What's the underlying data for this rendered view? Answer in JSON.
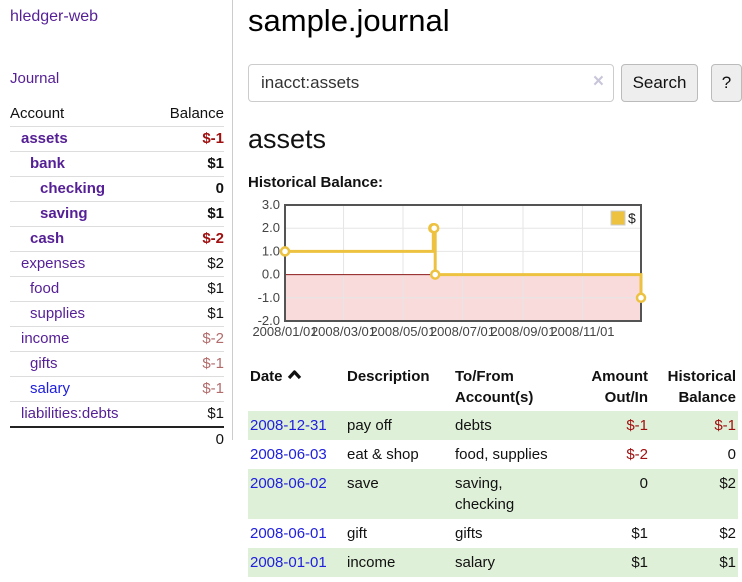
{
  "sidebar": {
    "app_title": "hledger-web",
    "journal_label": "Journal",
    "accounts_table": {
      "headers": {
        "account": "Account",
        "balance": "Balance"
      },
      "rows": [
        {
          "name": "assets",
          "balance": "$-1",
          "level": 1,
          "bold": true,
          "negative": "strong"
        },
        {
          "name": "bank",
          "balance": "$1",
          "level": 2,
          "bold": true
        },
        {
          "name": "checking",
          "balance": "0",
          "level": 3,
          "bold": true
        },
        {
          "name": "saving",
          "balance": "$1",
          "level": 3,
          "bold": true
        },
        {
          "name": "cash",
          "balance": "$-2",
          "level": 2,
          "bold": true,
          "negative": "strong"
        },
        {
          "name": "expenses",
          "balance": "$2",
          "level": 1
        },
        {
          "name": "food",
          "balance": "$1",
          "level": 2
        },
        {
          "name": "supplies",
          "balance": "$1",
          "level": 2
        },
        {
          "name": "income",
          "balance": "$-2",
          "level": 1,
          "negative": "muted"
        },
        {
          "name": "gifts",
          "balance": "$-1",
          "level": 2,
          "negative": "muted"
        },
        {
          "name": "salary",
          "balance": "$-1",
          "level": 2,
          "negative": "muted",
          "link_color": "blue"
        },
        {
          "name": "liabilities:debts",
          "balance": "$1",
          "level": 1
        }
      ],
      "total": "0"
    }
  },
  "main": {
    "title": "sample.journal",
    "search": {
      "value": "inacct:assets",
      "clear_icon": "×",
      "button_label": "Search",
      "help_label": "?"
    },
    "account_heading": "assets",
    "chart_title": "Historical Balance:",
    "register_table": {
      "headers": [
        {
          "lines": [
            "Date"
          ],
          "sort": true
        },
        {
          "lines": [
            "Description"
          ]
        },
        {
          "lines": [
            "To/From",
            "Account(s)"
          ]
        },
        {
          "lines": [
            "Amount",
            "Out/In"
          ],
          "align": "right"
        },
        {
          "lines": [
            "Historical",
            "Balance"
          ],
          "align": "right"
        }
      ],
      "sort_icon": "chevron-up",
      "rows": [
        {
          "date": "2008-12-31",
          "description": "pay off",
          "accounts": [
            "debts"
          ],
          "amount": "$-1",
          "amount_negative": true,
          "balance": "$-1",
          "balance_negative": true,
          "stripe": true
        },
        {
          "date": "2008-06-03",
          "description": "eat & shop",
          "accounts": [
            "food, supplies"
          ],
          "amount": "$-2",
          "amount_negative": true,
          "balance": "0"
        },
        {
          "date": "2008-06-02",
          "description": "save",
          "accounts": [
            "saving,",
            "checking"
          ],
          "amount": "0",
          "balance": "$2",
          "stripe": true
        },
        {
          "date": "2008-06-01",
          "description": "gift",
          "accounts": [
            "gifts"
          ],
          "amount": "$1",
          "balance": "$2"
        },
        {
          "date": "2008-01-01",
          "description": "income",
          "accounts": [
            "salary"
          ],
          "amount": "$1",
          "balance": "$1",
          "stripe": true
        }
      ]
    }
  },
  "chart_data": {
    "type": "line",
    "title": "Historical Balance:",
    "step": true,
    "x_range": [
      "2008-01-01",
      "2008-12-31"
    ],
    "ylim": [
      -2,
      3
    ],
    "y_ticks": [
      3.0,
      2.0,
      1.0,
      0.0,
      -1.0,
      -2.0
    ],
    "x_ticks": [
      "2008/01/01",
      "2008/03/01",
      "2008/05/01",
      "2008/07/01",
      "2008/09/01",
      "2008/11/01"
    ],
    "series": [
      {
        "name": "$",
        "color": "#edc240",
        "points": [
          [
            "2008-01-01",
            1
          ],
          [
            "2008-06-01",
            2
          ],
          [
            "2008-06-02",
            2
          ],
          [
            "2008-06-03",
            0
          ],
          [
            "2008-12-31",
            -1
          ]
        ]
      }
    ],
    "legend_position": "top-right",
    "grid": true,
    "negative_region_color": "#f9dbdb",
    "zero_line_color": "#8b1a1a",
    "border_color": "#545454",
    "gridline_color": "#e6e6e6"
  },
  "colors": {
    "link_purple": "#551f96",
    "link_blue": "#2020dd",
    "negative_strong": "#a01010",
    "negative_muted": "#b26b6b",
    "stripe_green": "#dff0d8",
    "series_yellow": "#edc240"
  }
}
